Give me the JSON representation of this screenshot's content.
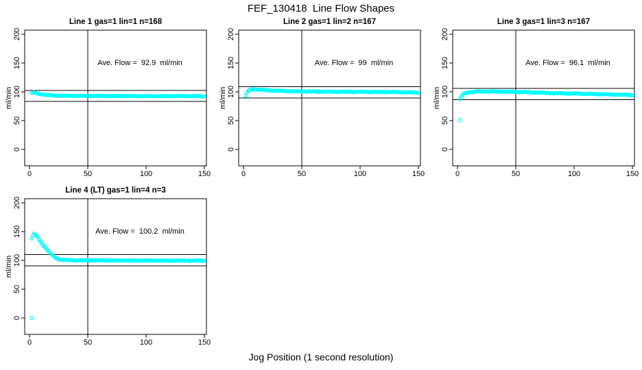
{
  "page": {
    "main_title": "FEF_130418  Line Flow Shapes",
    "x_axis_label": "Jog Position (1 second resolution)",
    "colors": {
      "points": "#00ffff",
      "lines": "#000000",
      "background": "#ffffff"
    }
  },
  "chart_data": [
    {
      "type": "scatter",
      "title": "Line 1 gas=1 lin=1 n=168",
      "n": 168,
      "ave_flow": 92.9,
      "ave_flow_label": "Ave. Flow =  92.9  ml/min",
      "ylabel": "ml/min",
      "xlim": [
        0,
        150
      ],
      "ylim": [
        0,
        200
      ],
      "x_ticks": [
        0,
        50,
        100,
        150
      ],
      "y_ticks": [
        0,
        50,
        100,
        150,
        200
      ],
      "vline_x": 50,
      "hlines": [
        102.2,
        83.6
      ],
      "x_start": 2,
      "x_end": 150,
      "anchors": [
        [
          2,
          98
        ],
        [
          4,
          98.5
        ],
        [
          6,
          97.5
        ],
        [
          8,
          96.5
        ],
        [
          12,
          95.2
        ],
        [
          16,
          94.2
        ],
        [
          20,
          93.6
        ],
        [
          25,
          93.2
        ],
        [
          35,
          93
        ],
        [
          60,
          92.8
        ],
        [
          90,
          92.6
        ],
        [
          110,
          92.5
        ],
        [
          130,
          92.6
        ],
        [
          145,
          92.3
        ],
        [
          150,
          92.1
        ]
      ],
      "outliers": []
    },
    {
      "type": "scatter",
      "title": "Line 2 gas=1 lin=2 n=167",
      "n": 167,
      "ave_flow": 99,
      "ave_flow_label": "Ave. Flow =  99  ml/min",
      "ylabel": "ml/min",
      "xlim": [
        0,
        150
      ],
      "ylim": [
        0,
        200
      ],
      "x_ticks": [
        0,
        50,
        100,
        150
      ],
      "y_ticks": [
        0,
        50,
        100,
        150,
        200
      ],
      "vline_x": 50,
      "hlines": [
        108.9,
        89.1
      ],
      "x_start": 2,
      "x_end": 150,
      "anchors": [
        [
          2,
          93
        ],
        [
          3,
          98
        ],
        [
          4,
          101.5
        ],
        [
          5,
          103
        ],
        [
          6,
          104
        ],
        [
          8,
          104.6
        ],
        [
          10,
          104.4
        ],
        [
          14,
          103.6
        ],
        [
          18,
          103
        ],
        [
          25,
          102.2
        ],
        [
          35,
          101.3
        ],
        [
          50,
          100.7
        ],
        [
          70,
          100.2
        ],
        [
          90,
          100
        ],
        [
          110,
          99.8
        ],
        [
          130,
          99.6
        ],
        [
          150,
          98.6
        ]
      ],
      "outliers": []
    },
    {
      "type": "scatter",
      "title": "Line 3 gas=1 lin=3 n=167",
      "n": 167,
      "ave_flow": 96.1,
      "ave_flow_label": "Ave. Flow =  96.1  ml/min",
      "ylabel": "ml/min",
      "xlim": [
        0,
        150
      ],
      "ylim": [
        0,
        200
      ],
      "x_ticks": [
        0,
        50,
        100,
        150
      ],
      "y_ticks": [
        0,
        50,
        100,
        150,
        200
      ],
      "vline_x": 50,
      "hlines": [
        105.7,
        86.5
      ],
      "x_start": 2,
      "x_end": 150,
      "anchors": [
        [
          2,
          87
        ],
        [
          3,
          91
        ],
        [
          4,
          94
        ],
        [
          5,
          96
        ],
        [
          6,
          97.5
        ],
        [
          8,
          98.7
        ],
        [
          10,
          99.3
        ],
        [
          14,
          100
        ],
        [
          20,
          100.5
        ],
        [
          30,
          100.6
        ],
        [
          40,
          100.3
        ],
        [
          55,
          99.6
        ],
        [
          70,
          98.6
        ],
        [
          85,
          97.6
        ],
        [
          100,
          97
        ],
        [
          115,
          96.2
        ],
        [
          130,
          95.5
        ],
        [
          140,
          95
        ],
        [
          150,
          94.4
        ]
      ],
      "outliers": [
        [
          2,
          51
        ]
      ]
    },
    {
      "type": "scatter",
      "title": "Line 4 (LT) gas=1 lin=4 n=3",
      "n": 3,
      "ave_flow": 100.2,
      "ave_flow_label": "Ave. Flow =  100.2  ml/min",
      "ylabel": "ml/min",
      "xlim": [
        0,
        150
      ],
      "ylim": [
        0,
        200
      ],
      "x_ticks": [
        0,
        50,
        100,
        150
      ],
      "y_ticks": [
        0,
        50,
        100,
        150,
        200
      ],
      "vline_x": 50,
      "hlines": [
        110.2,
        90.2
      ],
      "x_start": 2,
      "x_end": 150,
      "anchors": [
        [
          2,
          138
        ],
        [
          3,
          143
        ],
        [
          4,
          146
        ],
        [
          5,
          145
        ],
        [
          6,
          143
        ],
        [
          7,
          140
        ],
        [
          8,
          137
        ],
        [
          10,
          131
        ],
        [
          12,
          126
        ],
        [
          14,
          121
        ],
        [
          16,
          116
        ],
        [
          18,
          112
        ],
        [
          20,
          108
        ],
        [
          22,
          105
        ],
        [
          24,
          103
        ],
        [
          26,
          101.5
        ],
        [
          28,
          100.8
        ],
        [
          32,
          100.3
        ],
        [
          40,
          100
        ],
        [
          60,
          100
        ],
        [
          80,
          99.8
        ],
        [
          100,
          99.7
        ],
        [
          120,
          99.6
        ],
        [
          150,
          99.5
        ]
      ],
      "outliers": [
        [
          2,
          0
        ]
      ]
    }
  ]
}
